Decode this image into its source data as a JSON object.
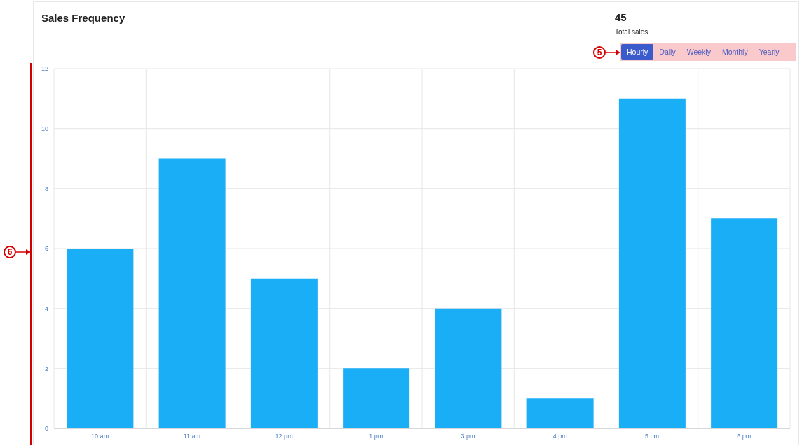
{
  "chart_data": {
    "type": "bar",
    "title": "Sales Frequency",
    "categories": [
      "10 am",
      "11 am",
      "12 pm",
      "1 pm",
      "3 pm",
      "4 pm",
      "5 pm",
      "6 pm"
    ],
    "values": [
      6,
      9,
      5,
      2,
      4,
      1,
      11,
      7
    ],
    "color": "#1aaef7",
    "ylim": [
      0,
      12
    ],
    "yticks": [
      0,
      2,
      4,
      6,
      8,
      10,
      12
    ],
    "grid": true,
    "annotations": [
      "45",
      "Total sales",
      "Hourly",
      "Daily",
      "Weekly",
      "Monthly",
      "Yearly",
      "5",
      "6"
    ]
  }
}
